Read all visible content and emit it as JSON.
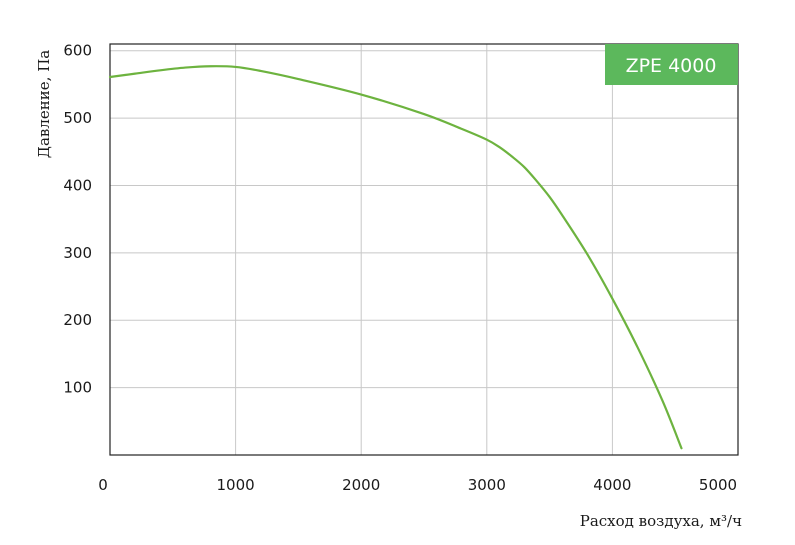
{
  "chart_data": {
    "type": "line",
    "title": "",
    "xlabel": "Расход воздуха, м³/ч",
    "ylabel": "Давление, Па",
    "xlim": [
      0,
      5000
    ],
    "ylim": [
      0,
      610
    ],
    "x_ticks": [
      0,
      1000,
      2000,
      3000,
      4000,
      5000
    ],
    "x_tick_labels": [
      "0",
      "1000",
      "2000",
      "3000",
      "4000",
      "5000"
    ],
    "y_ticks": [
      100,
      200,
      300,
      400,
      500,
      600
    ],
    "y_tick_labels": [
      "100",
      "200",
      "300",
      "400",
      "500",
      "600"
    ],
    "grid": true,
    "series": [
      {
        "name": "ZPE 4000",
        "color": "#6db33f",
        "x": [
          0,
          200,
          400,
          600,
          800,
          1000,
          1200,
          1500,
          2000,
          2500,
          2800,
          3000,
          3100,
          3200,
          3300,
          3400,
          3500,
          3600,
          3800,
          4000,
          4200,
          4400,
          4550
        ],
        "y": [
          561,
          566,
          571,
          575,
          577,
          576,
          570,
          558,
          535,
          506,
          484,
          468,
          457,
          443,
          427,
          406,
          383,
          356,
          298,
          232,
          160,
          80,
          10
        ]
      }
    ],
    "legend": {
      "position": "top-right",
      "label": "ZPE 4000",
      "color": "#5cb85c"
    }
  }
}
